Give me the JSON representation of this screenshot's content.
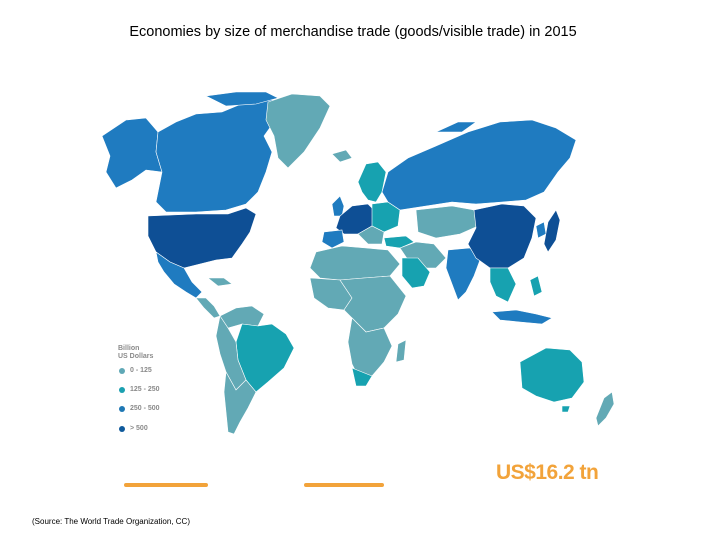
{
  "title": "Economies by size of merchandise trade (goods/visible trade) in 2015",
  "legend": {
    "unit_line1": "Billion",
    "unit_line2": "US Dollars",
    "items": [
      {
        "label": "0 - 125",
        "color": "#5fa8b6"
      },
      {
        "label": "125 - 250",
        "color": "#1aa0b0"
      },
      {
        "label": "250 - 500",
        "color": "#1f78b4"
      },
      {
        "label": "> 500",
        "color": "#0f5a9c"
      }
    ]
  },
  "total": "US$16.2 tn",
  "source": "(Source: The World Trade Organization, CC)",
  "colors": {
    "tier1": "#62a9b5",
    "tier2": "#17a2b0",
    "tier3": "#1f7bc0",
    "tier4": "#0e4f95",
    "accent": "#f2a33a"
  }
}
